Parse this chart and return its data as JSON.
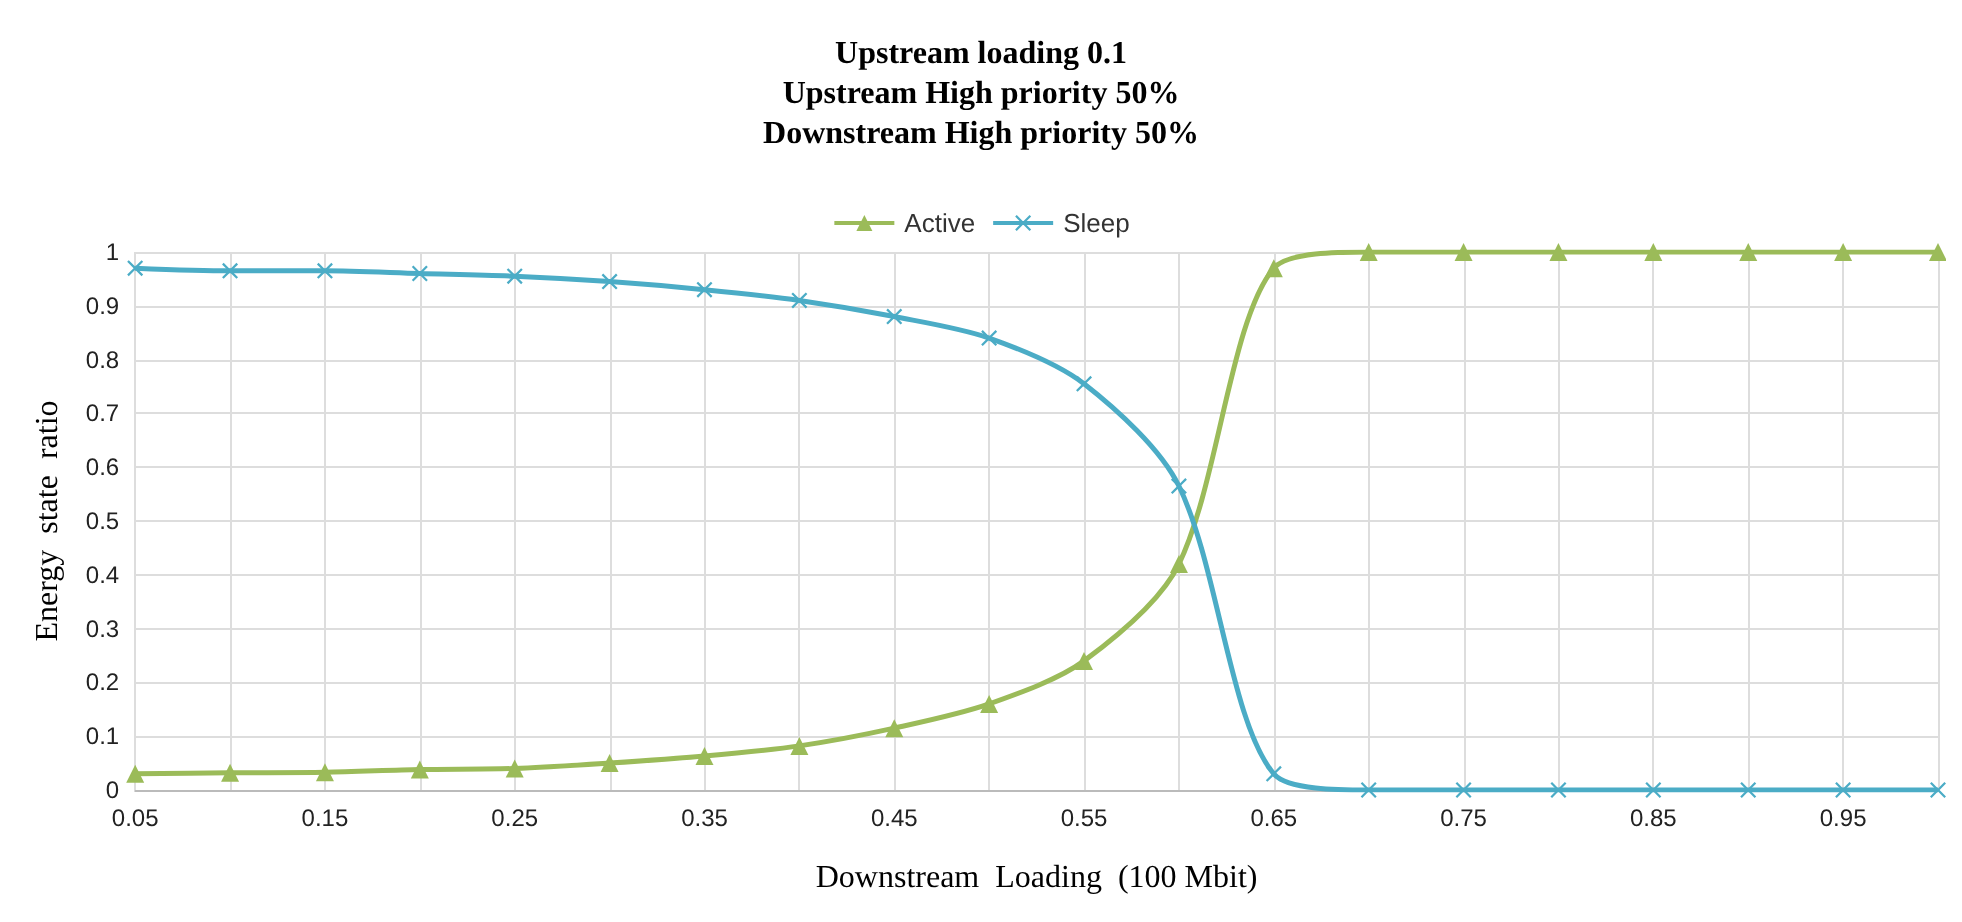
{
  "chart_data": {
    "type": "line",
    "title": "Upstream loading 0.1\nUpstream High priority 50%\nDownstream High priority 50%",
    "xlabel": "Downstream  Loading  (100 Mbit)",
    "ylabel": "Energy  state  ratio",
    "categories": [
      "0.05",
      null,
      "0.15",
      null,
      "0.25",
      null,
      "0.35",
      null,
      "0.45",
      null,
      "0.55",
      null,
      "0.65",
      null,
      "0.75",
      null,
      "0.85",
      null,
      "0.95",
      null
    ],
    "series": [
      {
        "name": "Active",
        "color": "#9bbb59",
        "marker": "triangle",
        "values": [
          0.03,
          0.032,
          0.033,
          0.038,
          0.04,
          0.05,
          0.063,
          0.082,
          0.115,
          0.16,
          0.24,
          0.42,
          0.97,
          1,
          1,
          1,
          1,
          1,
          1,
          1
        ]
      },
      {
        "name": "Sleep",
        "color": "#4bacc6",
        "marker": "cross",
        "values": [
          0.97,
          0.965,
          0.965,
          0.96,
          0.955,
          0.945,
          0.93,
          0.91,
          0.88,
          0.84,
          0.755,
          0.565,
          0.03,
          0,
          0,
          0,
          0,
          0,
          0,
          0
        ]
      }
    ],
    "ylim": [
      0,
      1
    ],
    "yticks": [
      0,
      0.1,
      0.2,
      0.3,
      0.4,
      0.5,
      0.6,
      0.7,
      0.8,
      0.9,
      1
    ],
    "grid": true,
    "legend": "top"
  }
}
